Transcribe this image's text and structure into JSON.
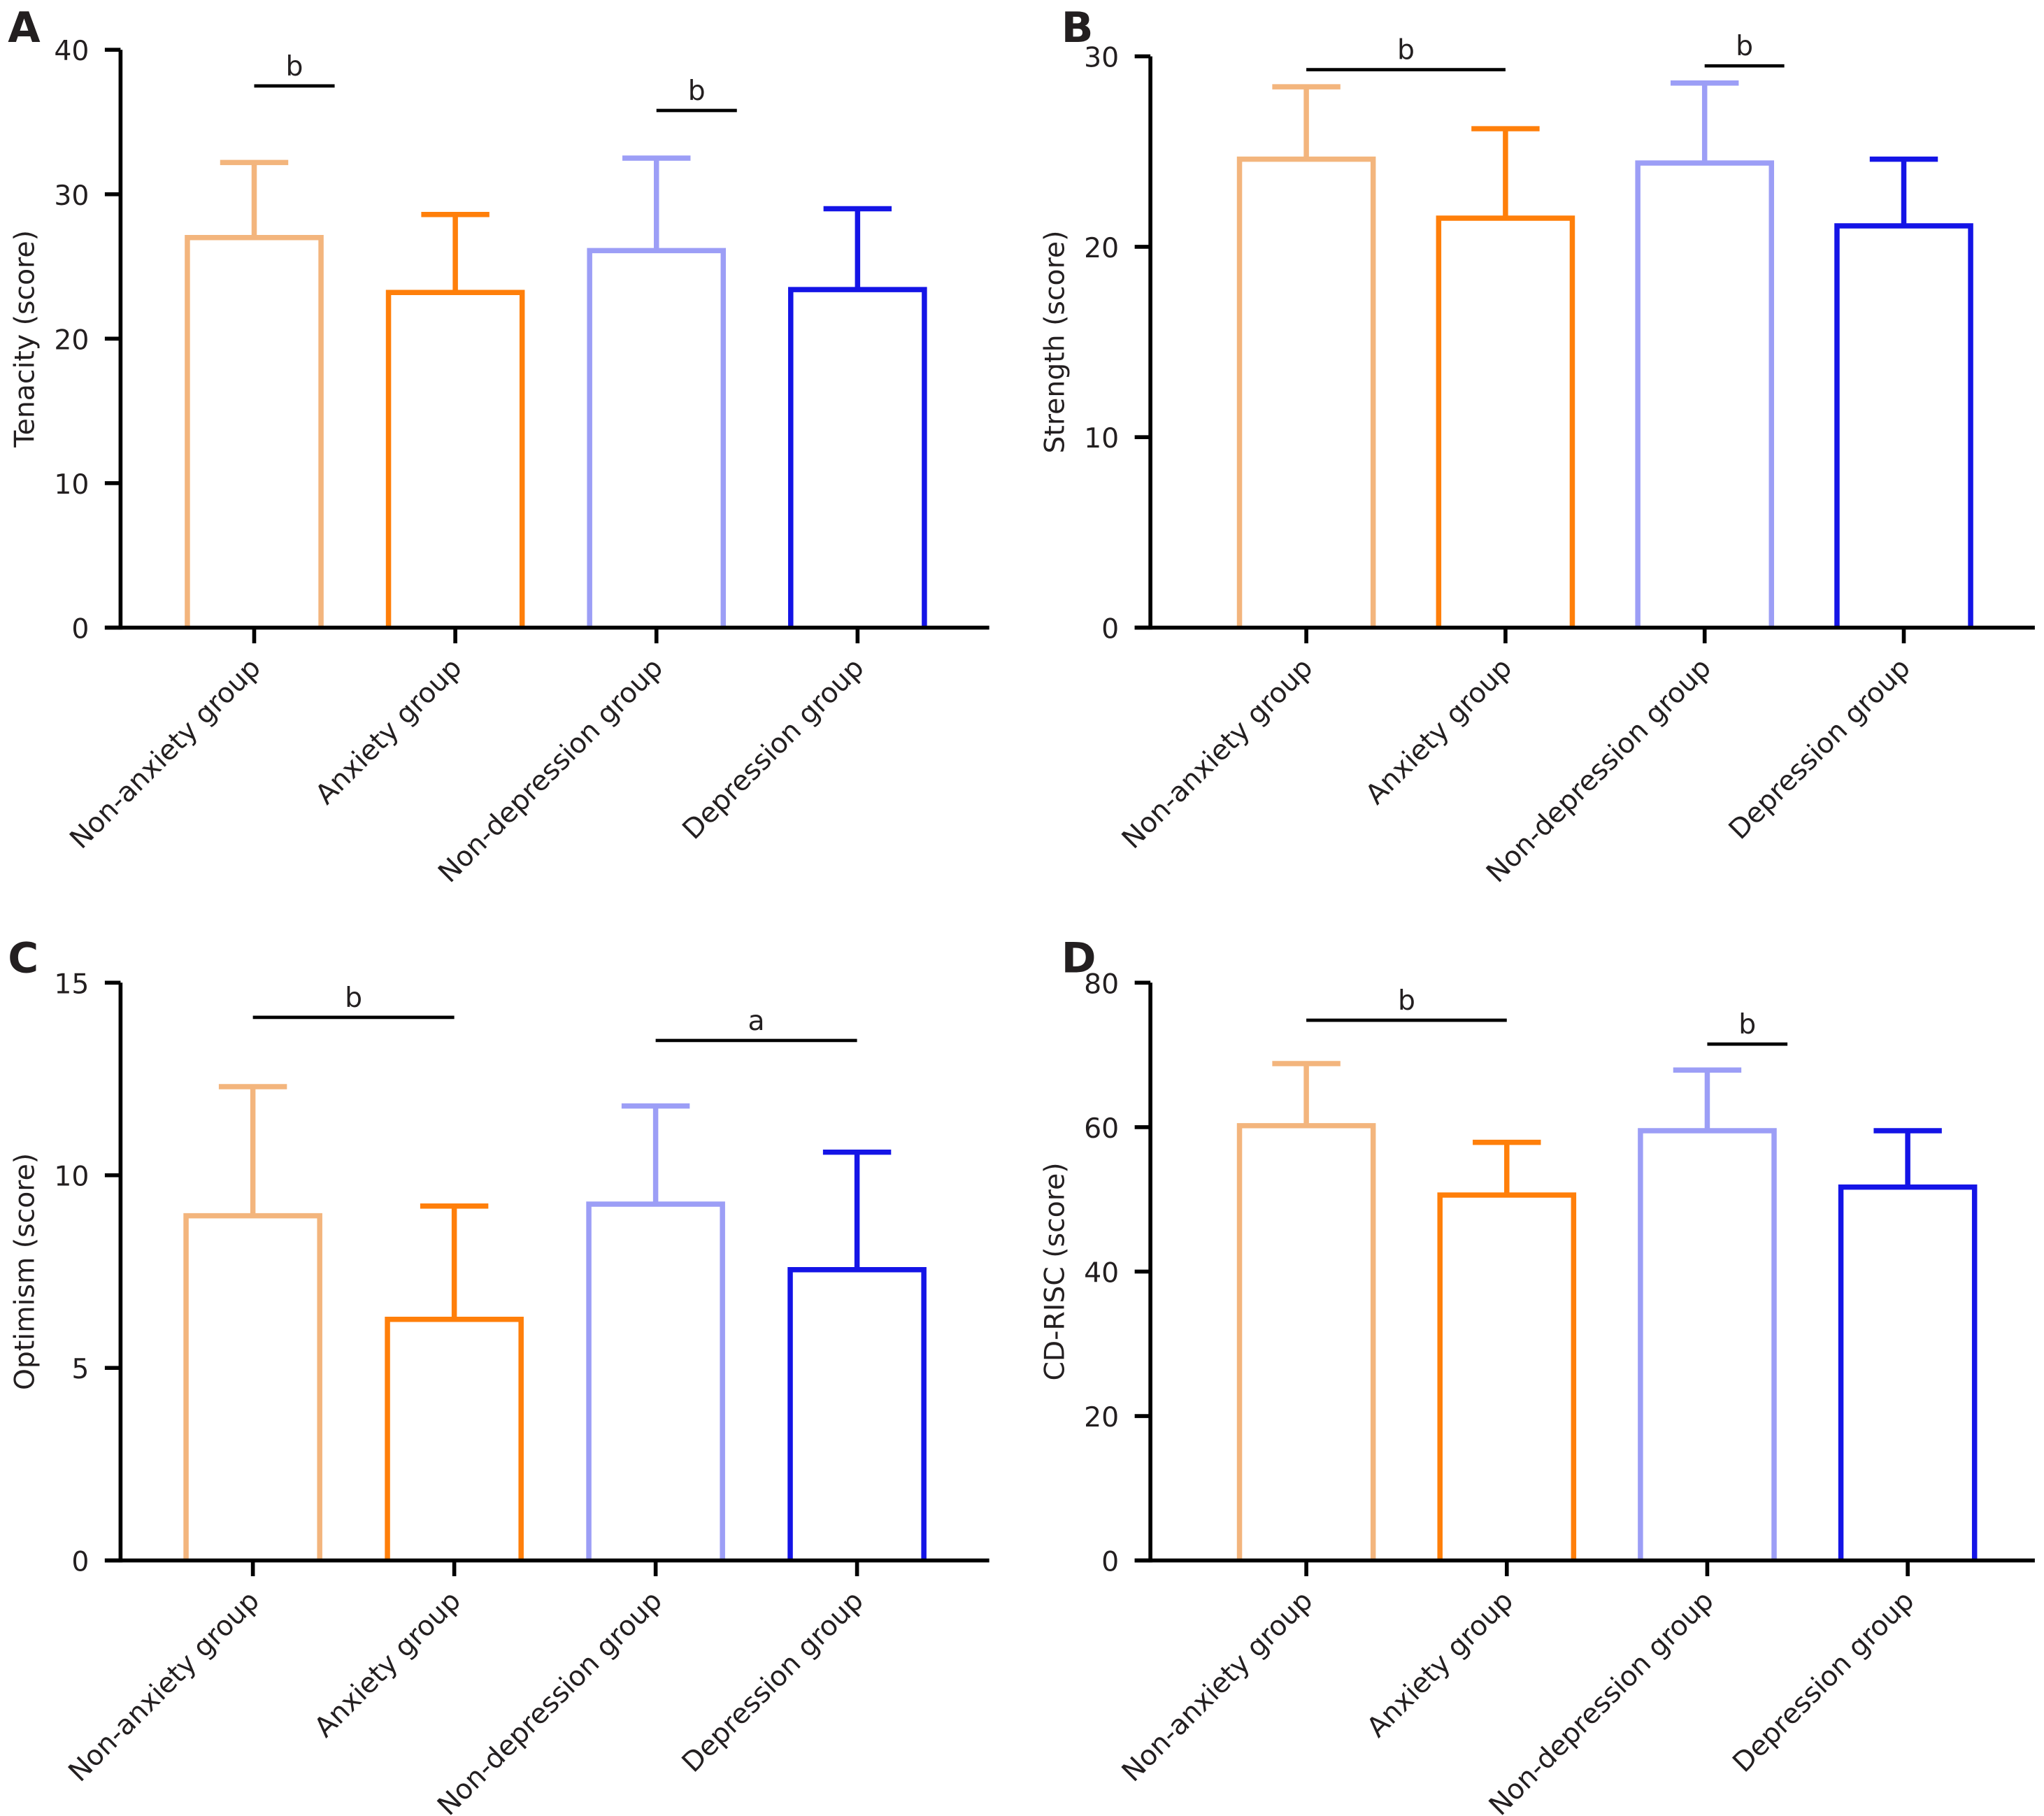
{
  "colors": [
    "#F3B57D",
    "#FF7F0A",
    "#9C9EF6",
    "#1414E6"
  ],
  "chart_data": [
    {
      "panel": "A",
      "type": "bar",
      "categories": [
        "Non-anxiety group",
        "Anxiety group",
        "Non-depression group",
        "Depression group"
      ],
      "values": [
        27.0,
        23.2,
        26.1,
        23.4
      ],
      "error_upper": [
        32.2,
        28.6,
        32.5,
        29.0
      ],
      "ylabel": "Tenacity (score)",
      "ylim": [
        0,
        40
      ],
      "yticks": [
        0,
        10,
        20,
        30,
        40
      ],
      "significance": [
        {
          "label": "b",
          "from": 0,
          "to": 0.4,
          "y": 37.5
        },
        {
          "label": "b",
          "from": 2,
          "to": 2.4,
          "y": 35.8
        }
      ]
    },
    {
      "panel": "B",
      "type": "bar",
      "categories": [
        "Non-anxiety group",
        "Anxiety group",
        "Non-depression group",
        "Depression group"
      ],
      "values": [
        24.6,
        21.5,
        24.4,
        21.1
      ],
      "error_upper": [
        28.4,
        26.2,
        28.6,
        24.6
      ],
      "ylabel": "Strength (score)",
      "ylim": [
        0,
        30
      ],
      "yticks": [
        0,
        10,
        20,
        30
      ],
      "significance": [
        {
          "label": "b",
          "from": 0,
          "to": 1,
          "y": 29.3
        },
        {
          "label": "b",
          "from": 2,
          "to": 2.4,
          "y": 29.5
        }
      ]
    },
    {
      "panel": "C",
      "type": "bar",
      "categories": [
        "Non-anxiety group",
        "Anxiety group",
        "Non-depression group",
        "Depression group"
      ],
      "values": [
        8.95,
        6.26,
        9.25,
        7.55
      ],
      "error_upper": [
        12.3,
        9.2,
        11.8,
        10.6
      ],
      "ylabel": "Optimism (score)",
      "ylim": [
        0,
        15
      ],
      "yticks": [
        0,
        5,
        10,
        15
      ],
      "significance": [
        {
          "label": "b",
          "from": 0,
          "to": 1,
          "y": 14.1
        },
        {
          "label": "a",
          "from": 2,
          "to": 3,
          "y": 13.5
        }
      ]
    },
    {
      "panel": "D",
      "type": "bar",
      "categories": [
        "Non-anxiety group",
        "Anxiety group",
        "Non-depression group",
        "Depression group"
      ],
      "values": [
        60.2,
        50.6,
        59.5,
        51.7
      ],
      "error_upper": [
        68.8,
        57.9,
        67.9,
        59.5
      ],
      "ylabel": "CD-RISC (score)",
      "ylim": [
        0,
        80
      ],
      "yticks": [
        0,
        20,
        40,
        60,
        80
      ],
      "significance": [
        {
          "label": "b",
          "from": 0,
          "to": 1,
          "y": 74.8
        },
        {
          "label": "b",
          "from": 2,
          "to": 2.4,
          "y": 71.5
        }
      ]
    }
  ]
}
